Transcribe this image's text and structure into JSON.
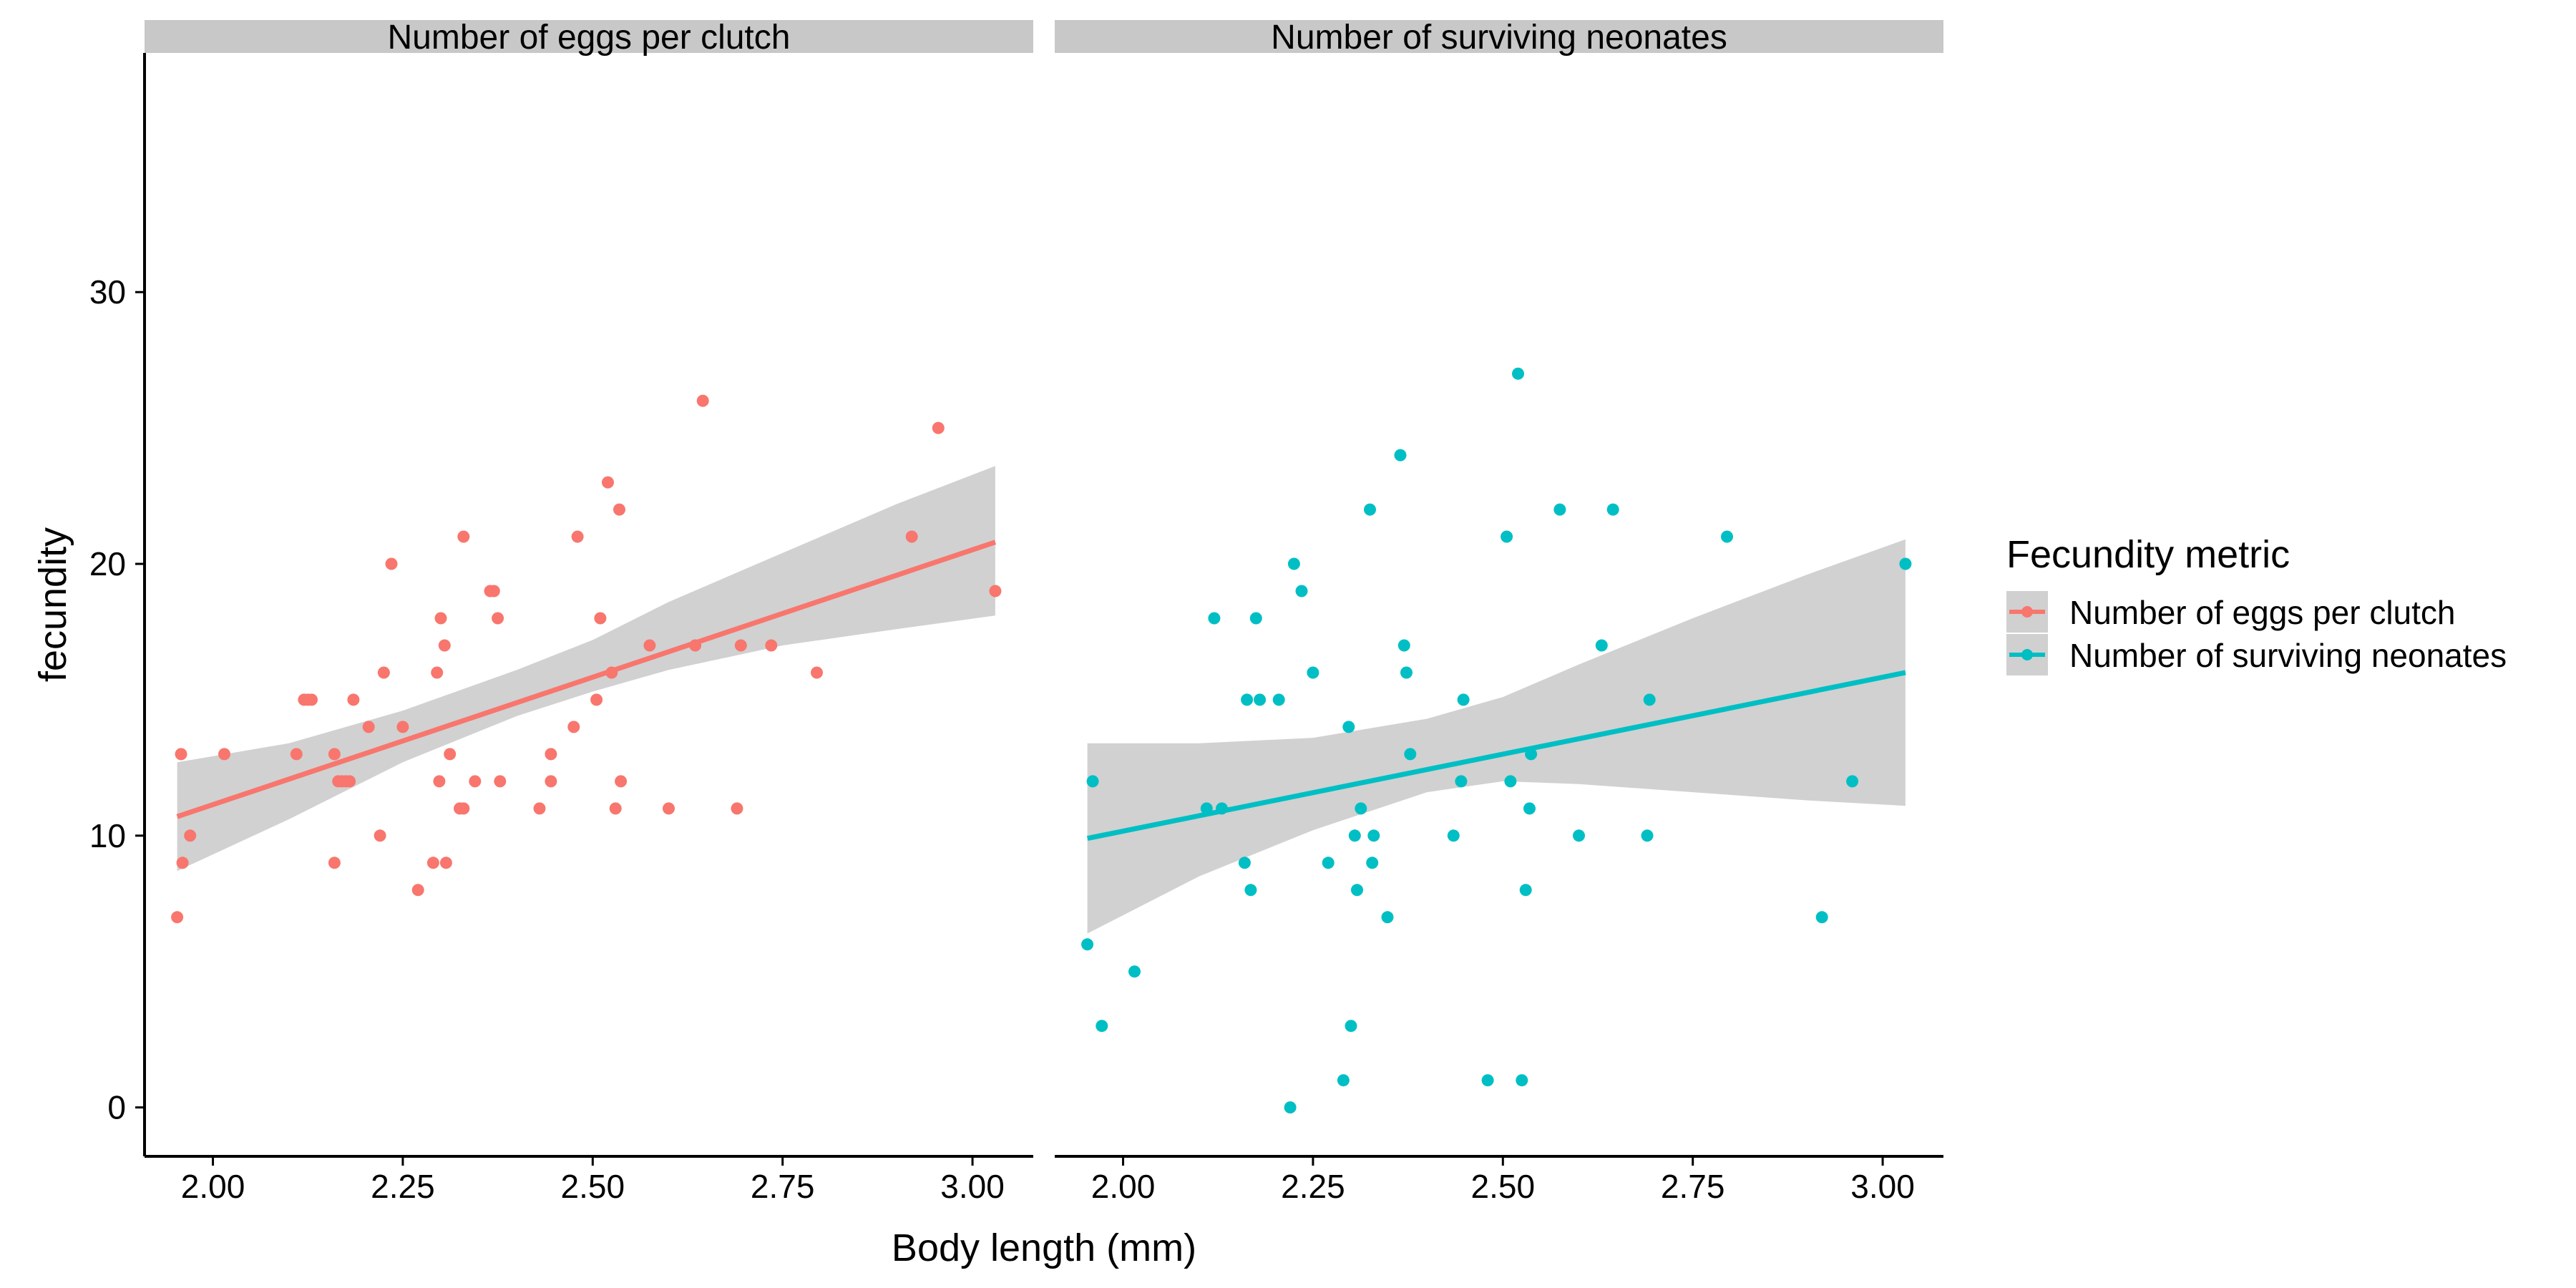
{
  "chart_data": {
    "type": "scatter",
    "facets": [
      "Number of eggs per clutch",
      "Number of surviving neonates"
    ],
    "xlabel": "Body length (mm)",
    "ylabel": "fecundity",
    "x_ticks": [
      2.0,
      2.25,
      2.5,
      2.75,
      3.0
    ],
    "x_tick_labels": [
      "2.00",
      "2.25",
      "2.50",
      "2.75",
      "3.00"
    ],
    "y_ticks": [
      0,
      10,
      20,
      30
    ],
    "y_tick_labels": [
      "0",
      "10",
      "20",
      "30"
    ],
    "xlim": [
      1.91,
      3.08
    ],
    "ylim": [
      -1.8,
      38.8
    ],
    "grid": false,
    "legend": {
      "title": "Fecundity metric",
      "placement": "right",
      "entries": [
        "Number of eggs per clutch",
        "Number of surviving neonates"
      ]
    },
    "series": [
      {
        "name": "Number of eggs per clutch",
        "color": "#F8766D",
        "points": [
          [
            1.953,
            7
          ],
          [
            1.958,
            13
          ],
          [
            1.96,
            9
          ],
          [
            1.97,
            10
          ],
          [
            2.015,
            13
          ],
          [
            2.11,
            13
          ],
          [
            2.12,
            15
          ],
          [
            2.125,
            15
          ],
          [
            2.13,
            15
          ],
          [
            2.16,
            9
          ],
          [
            2.16,
            13
          ],
          [
            2.165,
            12
          ],
          [
            2.17,
            12
          ],
          [
            2.175,
            12
          ],
          [
            2.18,
            12
          ],
          [
            2.185,
            15
          ],
          [
            2.205,
            14
          ],
          [
            2.22,
            10
          ],
          [
            2.225,
            16
          ],
          [
            2.235,
            20
          ],
          [
            2.25,
            14
          ],
          [
            2.27,
            8
          ],
          [
            2.29,
            9
          ],
          [
            2.295,
            16
          ],
          [
            2.298,
            12
          ],
          [
            2.3,
            18
          ],
          [
            2.305,
            17
          ],
          [
            2.307,
            9
          ],
          [
            2.312,
            13
          ],
          [
            2.325,
            11
          ],
          [
            2.33,
            11
          ],
          [
            2.33,
            21
          ],
          [
            2.345,
            12
          ],
          [
            2.365,
            19
          ],
          [
            2.37,
            19
          ],
          [
            2.375,
            18
          ],
          [
            2.378,
            12
          ],
          [
            2.43,
            11
          ],
          [
            2.445,
            12
          ],
          [
            2.445,
            13
          ],
          [
            2.475,
            14
          ],
          [
            2.48,
            21
          ],
          [
            2.505,
            15
          ],
          [
            2.51,
            18
          ],
          [
            2.52,
            23
          ],
          [
            2.525,
            16
          ],
          [
            2.53,
            11
          ],
          [
            2.535,
            22
          ],
          [
            2.537,
            12
          ],
          [
            2.575,
            17
          ],
          [
            2.6,
            11
          ],
          [
            2.635,
            17
          ],
          [
            2.645,
            26
          ],
          [
            2.69,
            11
          ],
          [
            2.695,
            17
          ],
          [
            2.735,
            17
          ],
          [
            2.795,
            16
          ],
          [
            2.92,
            21
          ],
          [
            2.955,
            25
          ],
          [
            3.03,
            19
          ]
        ],
        "trend": {
          "x": [
            1.953,
            3.03
          ],
          "y": [
            10.7,
            20.8
          ]
        },
        "band": {
          "x": [
            1.953,
            2.1,
            2.25,
            2.4,
            2.5,
            2.6,
            2.75,
            2.9,
            3.03
          ],
          "lower": [
            8.7,
            10.6,
            12.7,
            14.4,
            15.3,
            16.1,
            17.0,
            17.6,
            18.1
          ],
          "upper": [
            12.7,
            13.4,
            14.6,
            16.1,
            17.2,
            18.6,
            20.4,
            22.2,
            23.6
          ]
        }
      },
      {
        "name": "Number of surviving neonates",
        "color": "#00BFC4",
        "points": [
          [
            1.953,
            6
          ],
          [
            1.96,
            12
          ],
          [
            1.972,
            3
          ],
          [
            2.015,
            5
          ],
          [
            2.11,
            11
          ],
          [
            2.12,
            18
          ],
          [
            2.13,
            11
          ],
          [
            2.16,
            9
          ],
          [
            2.163,
            15
          ],
          [
            2.168,
            8
          ],
          [
            2.175,
            18
          ],
          [
            2.18,
            15
          ],
          [
            2.205,
            15
          ],
          [
            2.22,
            0
          ],
          [
            2.225,
            20
          ],
          [
            2.235,
            19
          ],
          [
            2.25,
            16
          ],
          [
            2.27,
            9
          ],
          [
            2.29,
            1
          ],
          [
            2.297,
            14
          ],
          [
            2.3,
            3
          ],
          [
            2.305,
            10
          ],
          [
            2.308,
            8
          ],
          [
            2.313,
            11
          ],
          [
            2.325,
            22
          ],
          [
            2.328,
            9
          ],
          [
            2.33,
            10
          ],
          [
            2.348,
            7
          ],
          [
            2.365,
            24
          ],
          [
            2.37,
            17
          ],
          [
            2.373,
            16
          ],
          [
            2.378,
            13
          ],
          [
            2.435,
            10
          ],
          [
            2.445,
            12
          ],
          [
            2.448,
            15
          ],
          [
            2.48,
            1
          ],
          [
            2.505,
            21
          ],
          [
            2.51,
            12
          ],
          [
            2.52,
            27
          ],
          [
            2.525,
            1
          ],
          [
            2.53,
            8
          ],
          [
            2.535,
            11
          ],
          [
            2.537,
            13
          ],
          [
            2.575,
            22
          ],
          [
            2.6,
            10
          ],
          [
            2.63,
            17
          ],
          [
            2.645,
            22
          ],
          [
            2.69,
            10
          ],
          [
            2.693,
            15
          ],
          [
            2.795,
            21
          ],
          [
            2.92,
            7
          ],
          [
            2.96,
            12
          ],
          [
            3.03,
            20
          ]
        ],
        "trend": {
          "x": [
            1.953,
            3.03
          ],
          "y": [
            9.9,
            16.0
          ]
        },
        "band": {
          "x": [
            1.953,
            2.1,
            2.25,
            2.4,
            2.5,
            2.6,
            2.75,
            2.9,
            3.03
          ],
          "lower": [
            6.4,
            8.5,
            10.2,
            11.6,
            12.0,
            11.9,
            11.6,
            11.3,
            11.1
          ],
          "upper": [
            13.4,
            13.4,
            13.6,
            14.3,
            15.1,
            16.3,
            18.0,
            19.6,
            20.9
          ]
        }
      }
    ]
  }
}
